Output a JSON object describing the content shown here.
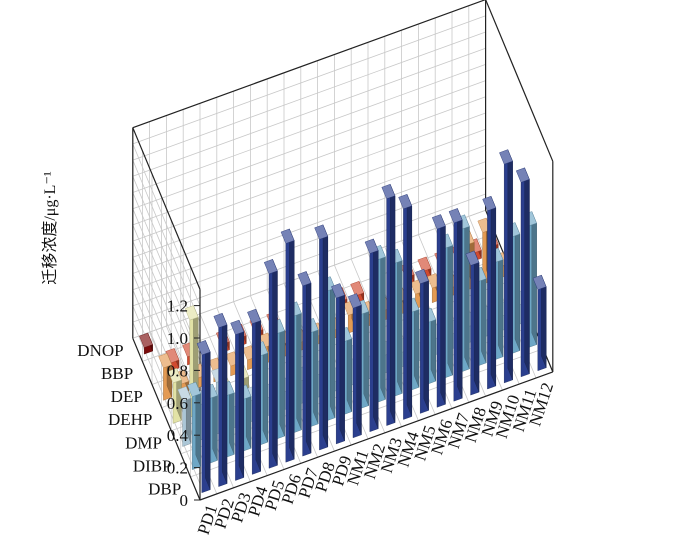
{
  "chart_data": {
    "type": "bar3d",
    "ylabel": "迁移浓度/μg·L⁻¹",
    "zlim": [
      0,
      1.3
    ],
    "z_ticks": [
      "0",
      "0.2",
      "0.4",
      "0.6",
      "0.8",
      "1.0",
      "1.2"
    ],
    "grid": true,
    "categories": [
      "PD1",
      "PD2",
      "PD3",
      "PD4",
      "PD5",
      "PD6",
      "PD7",
      "PD8",
      "PD9",
      "NM1",
      "NM2",
      "NM3",
      "NM4",
      "NM5",
      "NM6",
      "NM7",
      "NM8",
      "NM9",
      "NM10",
      "NM11",
      "NM12"
    ],
    "series": [
      {
        "name": "DBP",
        "color": "#2b3f8e",
        "values": [
          0.85,
          0.98,
          0.9,
          0.93,
          1.2,
          1.35,
          1.05,
          1.3,
          0.9,
          0.8,
          1.1,
          1.4,
          1.3,
          0.8,
          1.1,
          1.1,
          0.8,
          1.1,
          1.35,
          1.2,
          0.5
        ]
      },
      {
        "name": "DIBP",
        "color": "#6ea7c6",
        "values": [
          0.45,
          0.4,
          0.38,
          0.32,
          0.55,
          0.65,
          0.72,
          0.58,
          0.8,
          0.45,
          0.58,
          0.88,
          0.82,
          0.48,
          0.38,
          0.8,
          0.88,
          0.52,
          0.6,
          0.72,
          0.75
        ]
      },
      {
        "name": "DMP",
        "color": "#abc6d6",
        "values": [
          0.28,
          0.22,
          0.32,
          0.13,
          0.13,
          0.11,
          0.11,
          0.14,
          0.14,
          0.06,
          0.16,
          0.14,
          0.11,
          0.09,
          0.11,
          0.1,
          0.09,
          0.1,
          0.1,
          0.09,
          0.12
        ]
      },
      {
        "name": "DEHP",
        "color": "#e2e2a6",
        "values": [
          0.25,
          0.6,
          0.08,
          0.08,
          0.12,
          0.07,
          0.14,
          0.07,
          0.07,
          0.32,
          0.07,
          0.08,
          0.05,
          0.07,
          0.06,
          0.06,
          0.09,
          0.07,
          0.08,
          0.07,
          0.22
        ]
      },
      {
        "name": "DEP",
        "color": "#e39a53",
        "values": [
          0.2,
          0.06,
          0.06,
          0.06,
          0.06,
          0.06,
          0.1,
          0.08,
          0.05,
          0.05,
          0.05,
          0.11,
          0.07,
          0.06,
          0.08,
          0.09,
          0.09,
          0.05,
          0.28,
          0.32,
          0.07
        ]
      },
      {
        "name": "BBP",
        "color": "#d14a2f",
        "values": [
          0,
          0.05,
          0.05,
          0,
          0.05,
          0.05,
          0.05,
          0.05,
          0,
          0,
          0,
          0.05,
          0.05,
          0,
          0,
          0.05,
          0.05,
          0.05,
          0.05,
          0.05,
          0.05
        ]
      },
      {
        "name": "DNOP",
        "color": "#7a0c0c",
        "values": [
          0.04,
          0,
          0,
          0,
          0,
          0,
          0,
          0,
          0,
          0,
          0,
          0,
          0,
          0,
          0,
          0,
          0,
          0,
          0,
          0,
          0
        ]
      }
    ]
  }
}
